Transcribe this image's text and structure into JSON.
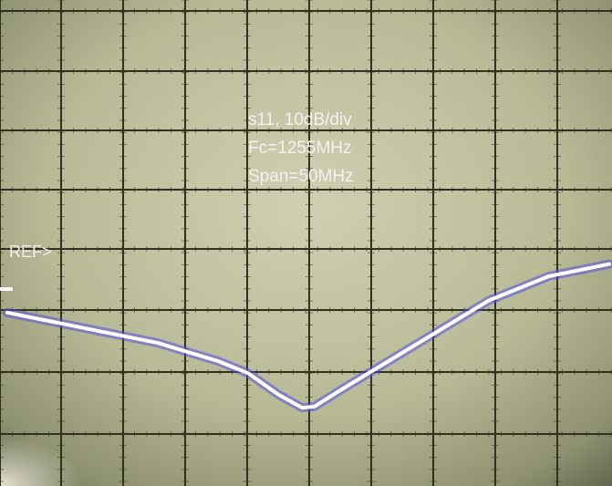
{
  "chart_data": {
    "type": "line",
    "annotations": [
      "s11, 10dB/div",
      "Fc=1255MHz",
      "Span=50MHz"
    ],
    "reference_marker": "REF>",
    "scale_db_per_div": 10,
    "center_frequency_mhz": 1255,
    "span_mhz": 50,
    "x_unit": "MHz",
    "y_unit": "divisions relative to REF",
    "xlim": [
      1230,
      1280
    ],
    "ylim": [
      -6,
      4
    ],
    "grid": true,
    "series": [
      {
        "x": [
          1230,
          1232.5,
          1235,
          1237.5,
          1240,
          1242.5,
          1245,
          1247.5,
          1250,
          1252.5,
          1254.5,
          1255.5,
          1257.5,
          1260,
          1262.5,
          1265,
          1267.5,
          1270,
          1272.5,
          1275,
          1277.5,
          1280
        ],
        "values": [
          -1.05,
          -1.15,
          -1.25,
          -1.35,
          -1.45,
          -1.55,
          -1.7,
          -1.85,
          -2.05,
          -2.4,
          -2.62,
          -2.6,
          -2.35,
          -2.05,
          -1.75,
          -1.45,
          -1.15,
          -0.85,
          -0.65,
          -0.45,
          -0.35,
          -0.25
        ]
      }
    ],
    "colors": {
      "screen_bright": "#c7c8a8",
      "screen_dim": "#6f7357",
      "grid": "#30321f",
      "trace": "#ffffff",
      "trace_glow": "#5a4fe0"
    }
  }
}
